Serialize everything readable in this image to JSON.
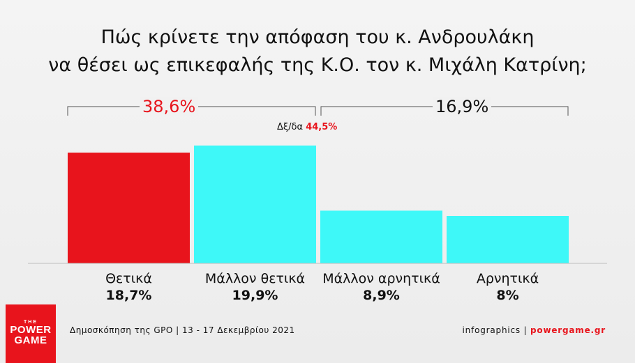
{
  "title": {
    "line1": "Πώς κρίνετε την απόφαση του κ. Ανδρουλάκη",
    "line2": "να θέσει ως επικεφαλής της Κ.Ο. τον κ. Μιχάλη Κατρίνη;"
  },
  "groups": {
    "positive_total": "38,6%",
    "negative_total": "16,9%",
    "dk_label": "Δξ/δα",
    "dk_value": "44,5%"
  },
  "colors": {
    "red": "#e8141c",
    "cyan": "#3ef8f8",
    "dark": "#111111"
  },
  "chart_data": {
    "type": "bar",
    "categories": [
      "Θετικά",
      "Μάλλον θετικά",
      "Μάλλον αρνητικά",
      "Αρνητικά"
    ],
    "values": [
      18.7,
      19.9,
      8.9,
      8
    ],
    "value_labels": [
      "18,7%",
      "19,9%",
      "8,9%",
      "8%"
    ],
    "bar_colors": [
      "#e8141c",
      "#3ef8f8",
      "#3ef8f8",
      "#3ef8f8"
    ],
    "ylim": [
      0,
      20
    ],
    "grid": false
  },
  "footer": {
    "source": "Δημοσκόπηση της GPO | 13 - 17 Δεκεμβρίου 2021",
    "credit": "infographics | ",
    "site": "powergame.gr"
  },
  "logo": {
    "the": "THE",
    "line1": "POWER",
    "line2": "GAME"
  }
}
